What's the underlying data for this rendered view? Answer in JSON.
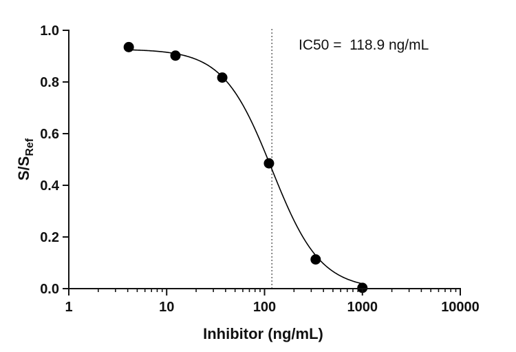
{
  "chart_data": {
    "type": "scatter",
    "x_scale": "log",
    "xlabel": "Inhibitor (ng/mL)",
    "ylabel": {
      "main": "S/S",
      "sub": "Ref"
    },
    "xlim": [
      1,
      10000
    ],
    "ylim": [
      0,
      1.0
    ],
    "x_ticks": [
      1,
      10,
      100,
      1000,
      10000
    ],
    "x_tick_labels": [
      "1",
      "10",
      "100",
      "1000",
      "10000"
    ],
    "y_ticks": [
      0,
      0.2,
      0.4,
      0.6,
      0.8,
      1.0
    ],
    "y_tick_labels": [
      "0.0",
      "0.2",
      "0.4",
      "0.6",
      "0.8",
      "1.0"
    ],
    "grid": false,
    "series": [
      {
        "x": [
          4.1,
          12.3,
          37,
          111,
          333,
          1000
        ],
        "y": [
          0.935,
          0.902,
          0.817,
          0.485,
          0.113,
          0.003
        ]
      }
    ],
    "fit_curve": {
      "model": "4PL",
      "top": 0.927,
      "bottom": -0.003,
      "ic50": 118.9,
      "hill_slope": 1.75
    },
    "reference_line": {
      "x": 118.9,
      "style": "dotted"
    },
    "annotations": [
      {
        "text": "IC50 =  118.9 ng/mL"
      }
    ],
    "colors": {
      "points": "#000000",
      "curve": "#000000",
      "axes": "#111111"
    }
  }
}
